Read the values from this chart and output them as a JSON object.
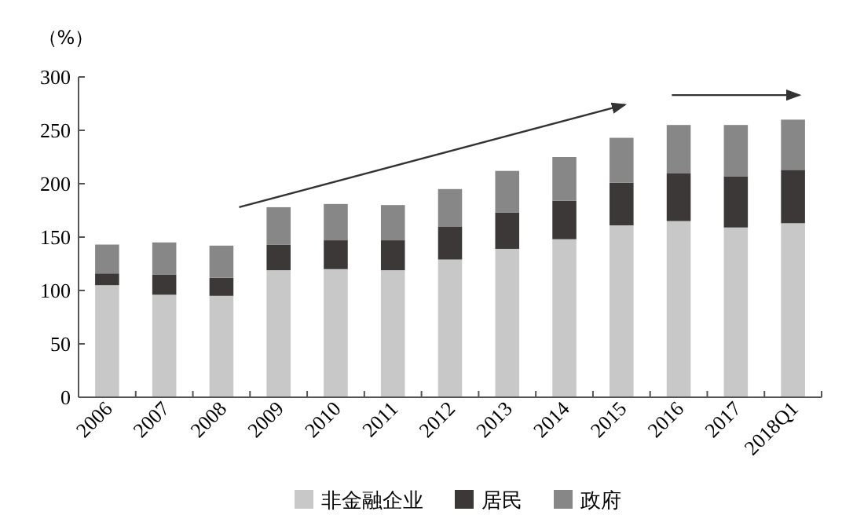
{
  "chart_data": {
    "type": "bar",
    "stacked": true,
    "ylabel": "（%）",
    "categories": [
      "2006",
      "2007",
      "2008",
      "2009",
      "2010",
      "2011",
      "2012",
      "2013",
      "2014",
      "2015",
      "2016",
      "2017",
      "2018Q1"
    ],
    "series": [
      {
        "name": "非金融企业",
        "color": "#c8c8c8",
        "values": [
          105,
          96,
          95,
          119,
          120,
          119,
          129,
          139,
          148,
          161,
          165,
          159,
          163
        ]
      },
      {
        "name": "居民",
        "color": "#3c3838",
        "values": [
          11,
          19,
          17,
          24,
          27,
          28,
          31,
          34,
          36,
          40,
          45,
          48,
          50
        ]
      },
      {
        "name": "政府",
        "color": "#878787",
        "values": [
          27,
          30,
          30,
          35,
          34,
          33,
          35,
          39,
          41,
          42,
          45,
          48,
          47
        ]
      }
    ],
    "ylim": [
      0,
      300
    ],
    "yticks": [
      0,
      50,
      100,
      150,
      200,
      250,
      300
    ],
    "legend": "bottom",
    "grid": false
  }
}
